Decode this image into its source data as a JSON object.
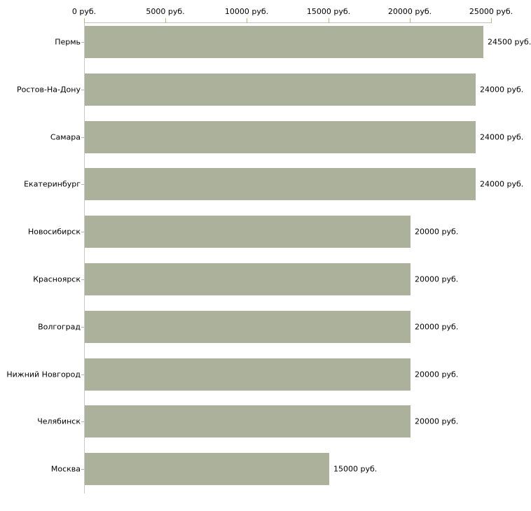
{
  "chart_data": {
    "type": "bar",
    "orientation": "horizontal",
    "title": "",
    "xlabel": "",
    "ylabel": "",
    "unit": "руб.",
    "xlim": [
      0,
      25000
    ],
    "grid": false,
    "legend": null,
    "axis_position": "top",
    "bar_color": "#abb19b",
    "categories": [
      "Пермь",
      "Ростов-На-Дону",
      "Самара",
      "Екатеринбург",
      "Новосибирск",
      "Красноярск",
      "Волгоград",
      "Нижний Новгород",
      "Челябинск",
      "Москва"
    ],
    "values": [
      24500,
      24000,
      24000,
      24000,
      20000,
      20000,
      20000,
      20000,
      20000,
      15000
    ],
    "value_labels": [
      "24500 руб.",
      "24000 руб.",
      "24000 руб.",
      "24000 руб.",
      "20000 руб.",
      "20000 руб.",
      "20000 руб.",
      "20000 руб.",
      "20000 руб.",
      "15000 руб."
    ],
    "x_ticks": [
      0,
      5000,
      10000,
      15000,
      20000,
      25000
    ],
    "x_tick_labels": [
      "0 руб.",
      "5000 руб.",
      "10000 руб.",
      "15000 руб.",
      "20000 руб.",
      "25000 руб."
    ]
  }
}
